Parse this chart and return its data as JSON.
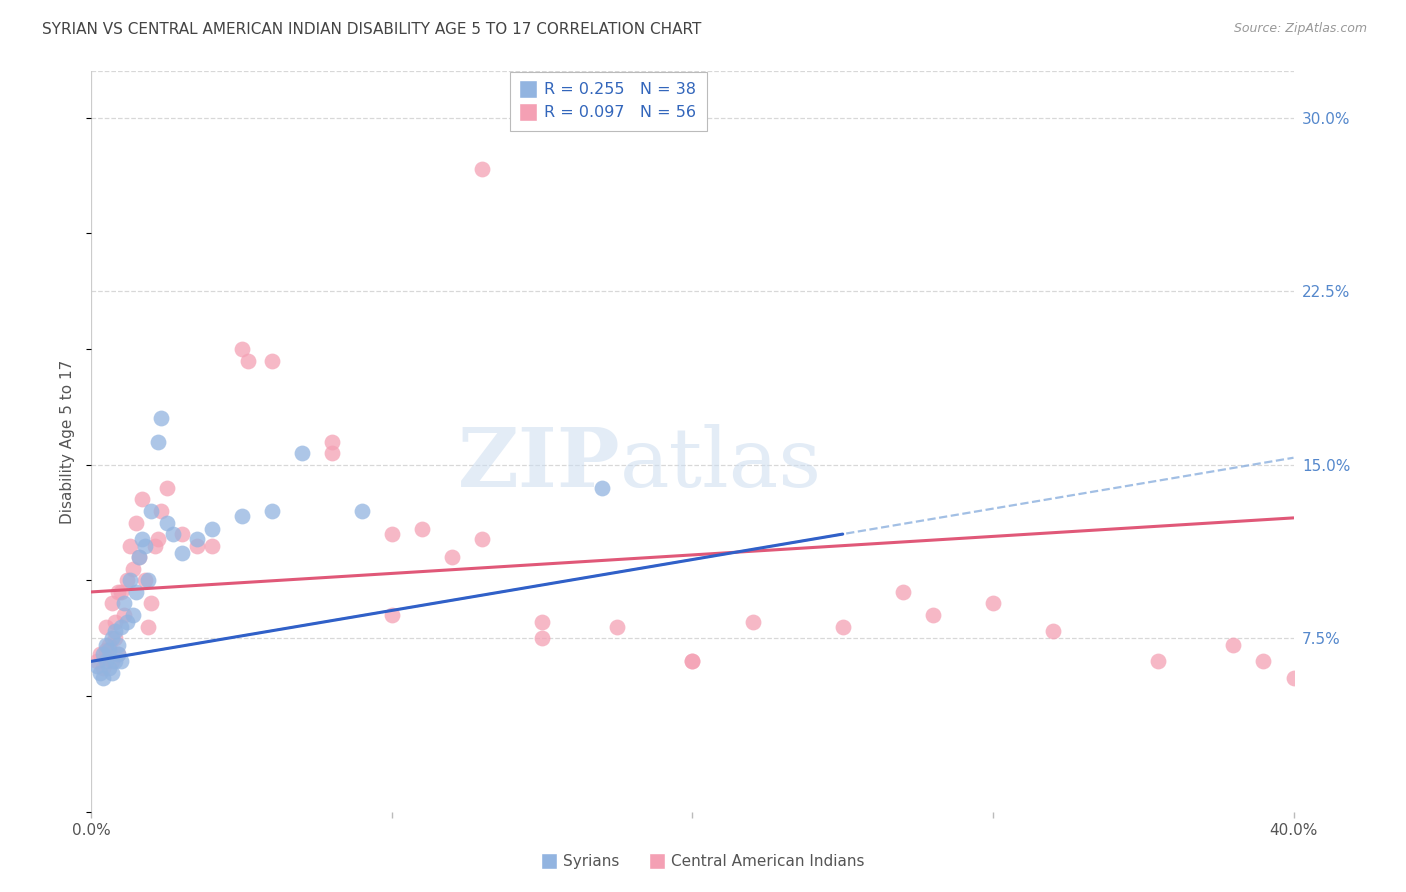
{
  "title": "SYRIAN VS CENTRAL AMERICAN INDIAN DISABILITY AGE 5 TO 17 CORRELATION CHART",
  "source": "Source: ZipAtlas.com",
  "ylabel": "Disability Age 5 to 17",
  "xlim": [
    0.0,
    0.4
  ],
  "ylim": [
    0.0,
    0.32
  ],
  "yticks_right": [
    0.075,
    0.15,
    0.225,
    0.3
  ],
  "ytick_labels_right": [
    "7.5%",
    "15.0%",
    "22.5%",
    "30.0%"
  ],
  "legend_label1": "Syrians",
  "legend_label2": "Central American Indians",
  "color_syrian": "#92b4e0",
  "color_caindian": "#f4a0b4",
  "color_trendline_syrian": "#3060c8",
  "color_trendline_caindian": "#e05878",
  "color_dashed": "#92b4e0",
  "background_color": "#ffffff",
  "grid_color": "#d8d8d8",
  "title_color": "#444444",
  "axis_label_color": "#555555",
  "right_tick_color": "#5588cc",
  "watermark_color": "#ccddf0",
  "syrian_trend_x_end": 0.25,
  "syrian_trend_slope": 0.22,
  "syrian_trend_intercept": 0.065,
  "caindian_trend_slope": 0.08,
  "caindian_trend_intercept": 0.095,
  "syrians_x": [
    0.002,
    0.003,
    0.004,
    0.004,
    0.005,
    0.005,
    0.006,
    0.006,
    0.007,
    0.007,
    0.008,
    0.008,
    0.009,
    0.009,
    0.01,
    0.01,
    0.011,
    0.012,
    0.013,
    0.014,
    0.015,
    0.016,
    0.017,
    0.018,
    0.019,
    0.02,
    0.022,
    0.023,
    0.025,
    0.027,
    0.03,
    0.035,
    0.04,
    0.05,
    0.06,
    0.07,
    0.09,
    0.17
  ],
  "syrians_y": [
    0.063,
    0.06,
    0.058,
    0.068,
    0.065,
    0.072,
    0.062,
    0.07,
    0.06,
    0.075,
    0.065,
    0.078,
    0.068,
    0.072,
    0.065,
    0.08,
    0.09,
    0.082,
    0.1,
    0.085,
    0.095,
    0.11,
    0.118,
    0.115,
    0.1,
    0.13,
    0.16,
    0.17,
    0.125,
    0.12,
    0.112,
    0.118,
    0.122,
    0.128,
    0.13,
    0.155,
    0.13,
    0.14
  ],
  "caindians_x": [
    0.002,
    0.003,
    0.004,
    0.005,
    0.005,
    0.006,
    0.007,
    0.007,
    0.008,
    0.008,
    0.009,
    0.009,
    0.01,
    0.011,
    0.012,
    0.013,
    0.014,
    0.015,
    0.016,
    0.017,
    0.018,
    0.019,
    0.02,
    0.021,
    0.022,
    0.023,
    0.025,
    0.03,
    0.035,
    0.05,
    0.052,
    0.08,
    0.1,
    0.11,
    0.12,
    0.13,
    0.15,
    0.175,
    0.2,
    0.22,
    0.25,
    0.27,
    0.3,
    0.32,
    0.355,
    0.38,
    0.4,
    0.04,
    0.06,
    0.08,
    0.1,
    0.15,
    0.2,
    0.28,
    0.39,
    0.13
  ],
  "caindians_y": [
    0.065,
    0.068,
    0.062,
    0.07,
    0.08,
    0.072,
    0.065,
    0.09,
    0.075,
    0.082,
    0.068,
    0.095,
    0.095,
    0.085,
    0.1,
    0.115,
    0.105,
    0.125,
    0.11,
    0.135,
    0.1,
    0.08,
    0.09,
    0.115,
    0.118,
    0.13,
    0.14,
    0.12,
    0.115,
    0.2,
    0.195,
    0.155,
    0.12,
    0.122,
    0.11,
    0.118,
    0.082,
    0.08,
    0.065,
    0.082,
    0.08,
    0.095,
    0.09,
    0.078,
    0.065,
    0.072,
    0.058,
    0.115,
    0.195,
    0.16,
    0.085,
    0.075,
    0.065,
    0.085,
    0.065,
    0.278
  ]
}
